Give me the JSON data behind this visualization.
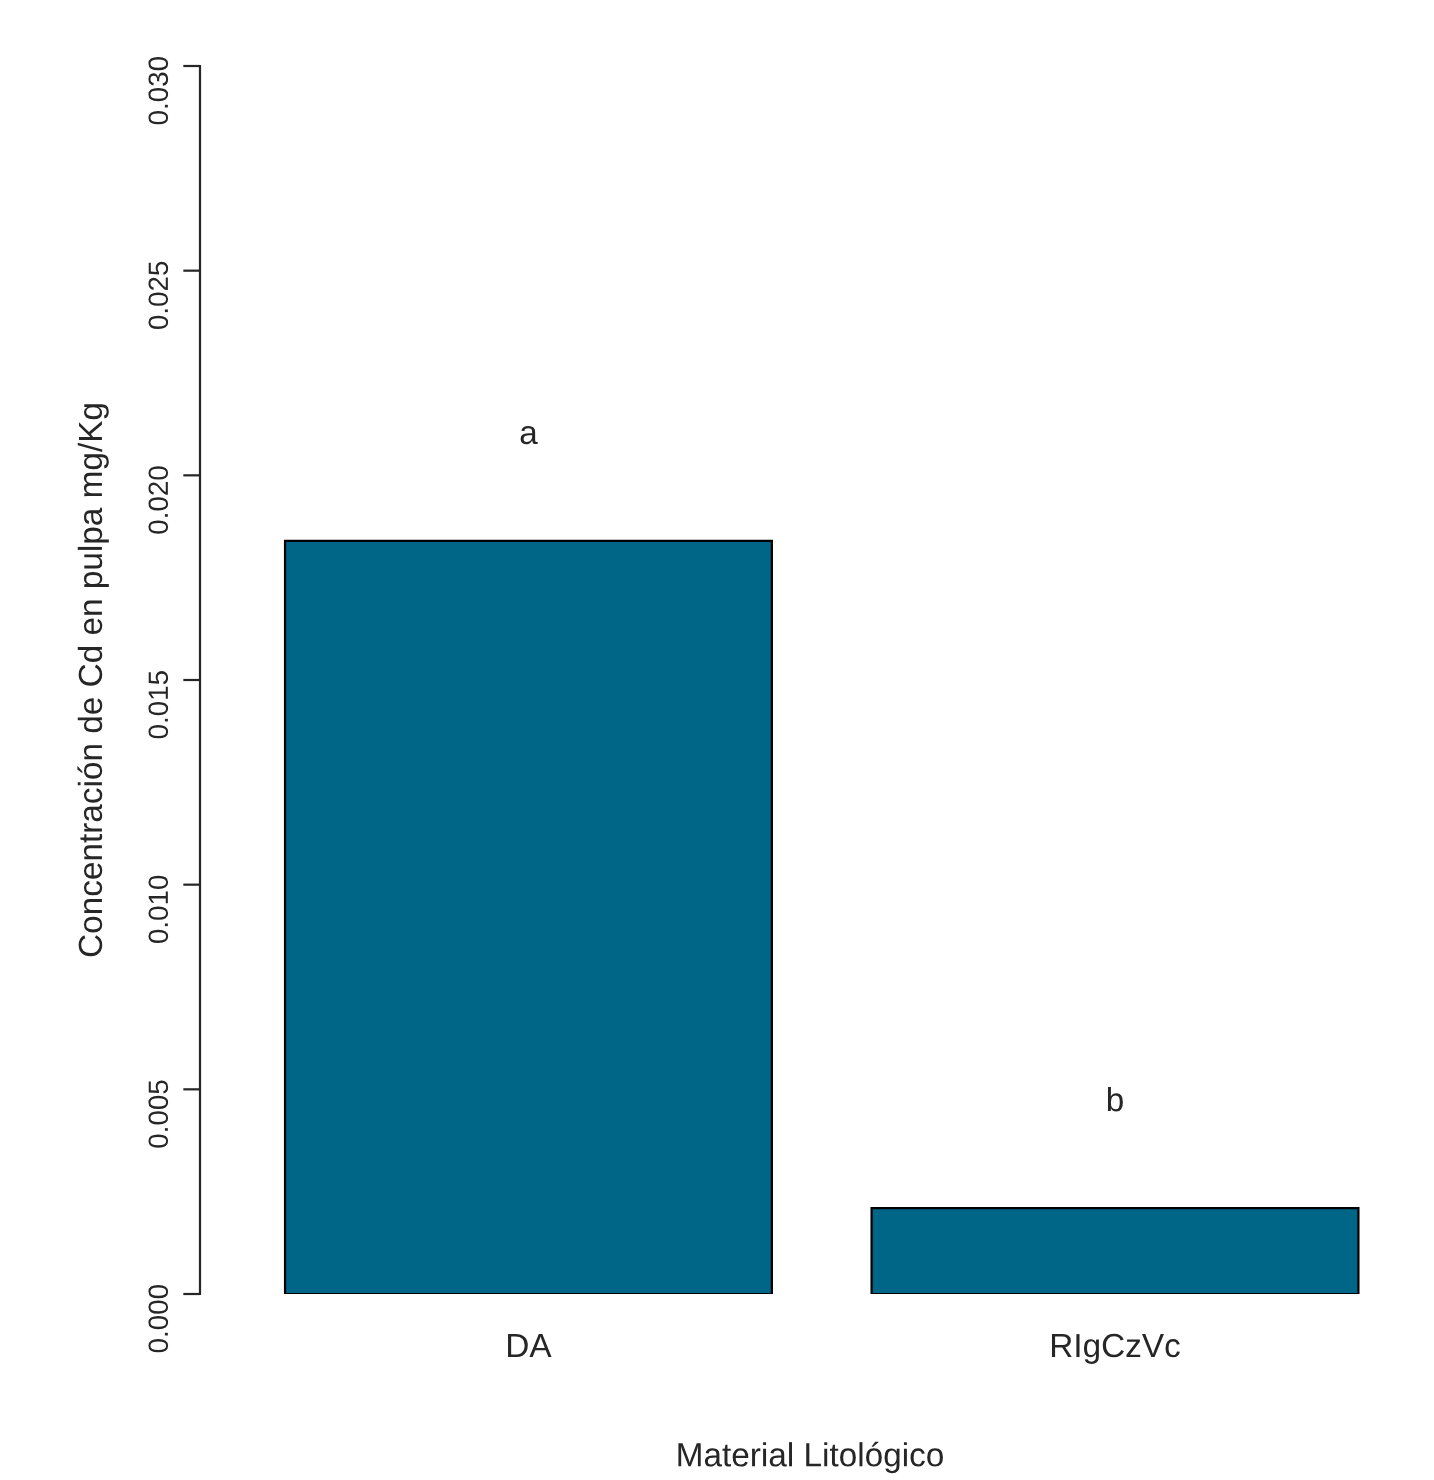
{
  "chart_data": {
    "type": "bar",
    "xlabel": "Material Litológico",
    "ylabel": "Concentración de Cd en pulpa mg/Kg",
    "categories": [
      "DA",
      "RIgCzVc"
    ],
    "values": [
      0.0184,
      0.0021
    ],
    "color": "#006688",
    "ylim": [
      0,
      0.03
    ],
    "yticks": [
      {
        "value": 0,
        "label": "0.000"
      },
      {
        "value": 0.005,
        "label": "0.005"
      },
      {
        "value": 0.01,
        "label": "0.010"
      },
      {
        "value": 0.015,
        "label": "0.015"
      },
      {
        "value": 0.02,
        "label": "0.020"
      },
      {
        "value": 0.025,
        "label": "0.025"
      },
      {
        "value": 0.03,
        "label": "0.030"
      }
    ],
    "annotations": [
      "a",
      "b"
    ],
    "grid": false,
    "legend": false
  }
}
